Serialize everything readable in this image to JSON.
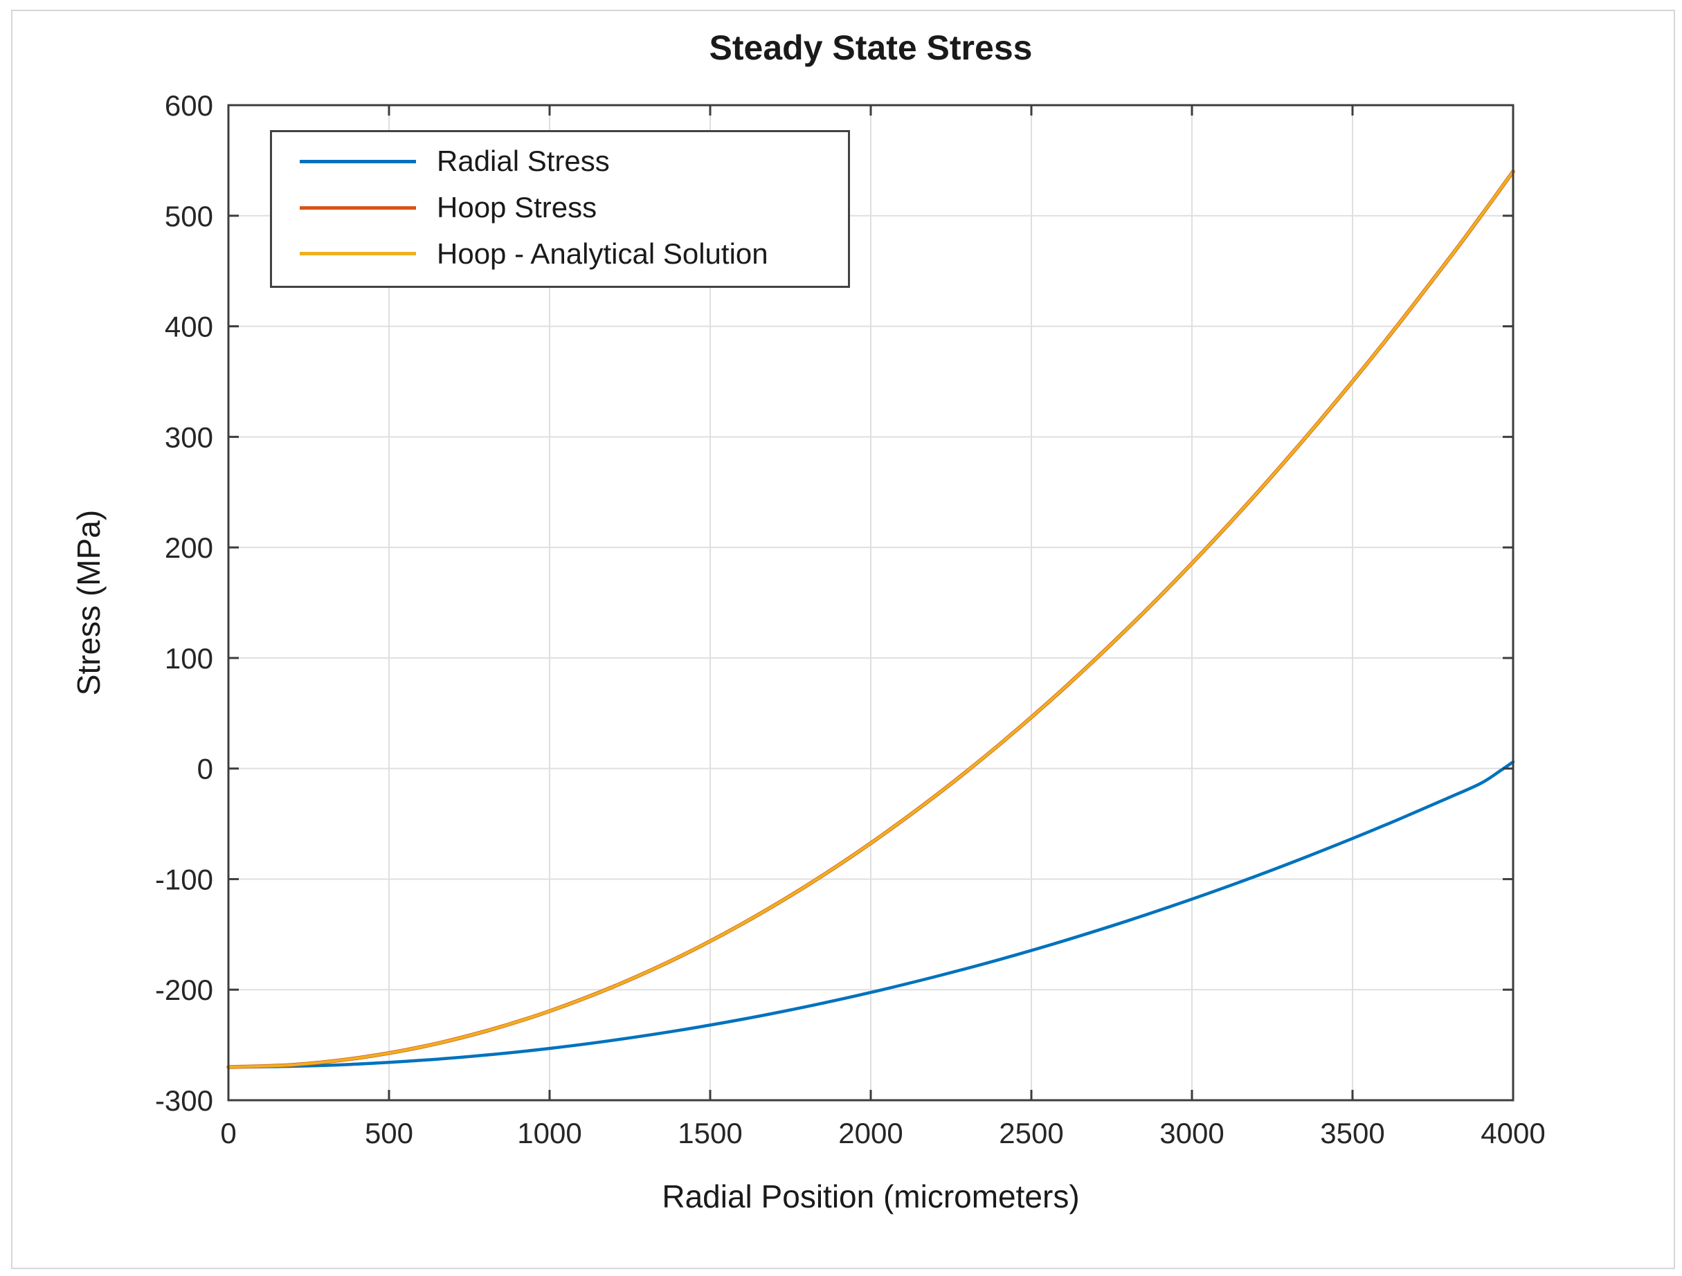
{
  "chart_data": {
    "type": "line",
    "title": "Steady State Stress",
    "xlabel": "Radial Position (micrometers)",
    "ylabel": "Stress (MPa)",
    "xlim": [
      0,
      4000
    ],
    "ylim": [
      -300,
      600
    ],
    "xticks": [
      0,
      500,
      1000,
      1500,
      2000,
      2500,
      3000,
      3500,
      4000
    ],
    "yticks": [
      -300,
      -200,
      -100,
      0,
      100,
      200,
      300,
      400,
      500,
      600
    ],
    "grid": true,
    "legend_position": "top-left",
    "x": [
      0,
      200,
      400,
      600,
      800,
      1000,
      1200,
      1400,
      1600,
      1800,
      2000,
      2200,
      2400,
      2600,
      2800,
      3000,
      3200,
      3400,
      3600,
      3800,
      3900,
      3960,
      4000
    ],
    "series": [
      {
        "name": "Radial Stress",
        "color": "#0072BD",
        "values": [
          -270,
          -269.3,
          -267.3,
          -263.9,
          -259.2,
          -253.1,
          -245.7,
          -236.9,
          -226.8,
          -215.3,
          -202.5,
          -188.3,
          -172.8,
          -155.9,
          -137.7,
          -118.1,
          -97.2,
          -74.9,
          -51.3,
          -26.3,
          -13.3,
          -2,
          6
        ]
      },
      {
        "name": "Hoop Stress",
        "color": "#D95319",
        "values": [
          -270,
          -268,
          -261.9,
          -251.8,
          -237.6,
          -219.4,
          -197.1,
          -170.8,
          -140.4,
          -106,
          -67.5,
          -25,
          21.6,
          72.2,
          126.9,
          185.6,
          248.4,
          315.2,
          386.1,
          461,
          500,
          523.9,
          540
        ]
      },
      {
        "name": "Hoop - Analytical Solution",
        "color": "#EDB120",
        "values": [
          -270,
          -268,
          -261.9,
          -251.8,
          -237.6,
          -219.4,
          -197.1,
          -170.8,
          -140.4,
          -106,
          -67.5,
          -25,
          21.6,
          72.2,
          126.9,
          185.6,
          248.4,
          315.2,
          386.1,
          461,
          500,
          523.9,
          540
        ]
      }
    ],
    "styles": {
      "grid_color": "#dfdfdf",
      "axis_color": "#3d3d3d",
      "tick_label_color": "#262626",
      "text_color": "#1a1a1a"
    }
  }
}
